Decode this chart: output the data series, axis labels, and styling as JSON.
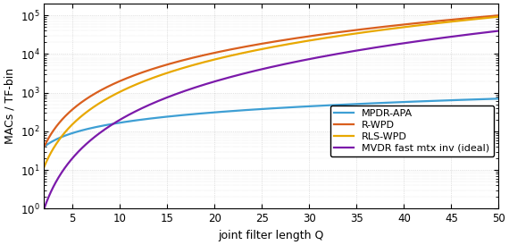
{
  "title": "",
  "xlabel": "joint filter length Q",
  "ylabel": "MACs / TF-bin",
  "xlim": [
    2,
    50
  ],
  "ylim": [
    1,
    200000.0
  ],
  "xticks": [
    5,
    10,
    15,
    20,
    25,
    30,
    35,
    40,
    45,
    50
  ],
  "legend_labels": [
    "MPDR-APA",
    "R-WPD",
    "RLS-WPD",
    "MVDR fast mtx inv (ideal)"
  ],
  "colors": {
    "MPDR-APA": "#3e9fd4",
    "R-WPD": "#d95f1e",
    "RLS-WPD": "#e8a800",
    "MVDR": "#7b1aaa"
  },
  "line_width": 1.6,
  "background_color": "#ffffff",
  "grid_color": "#c8c8c8",
  "mpdr_apa": {
    "a": 7.0,
    "p": 1.15
  },
  "r_wpd": {
    "a": 3.5,
    "p": 2.05
  },
  "rls_wpd": {
    "a": 3.0,
    "p": 2.12
  },
  "mvdr": {
    "a": 0.055,
    "p": 2.85
  }
}
